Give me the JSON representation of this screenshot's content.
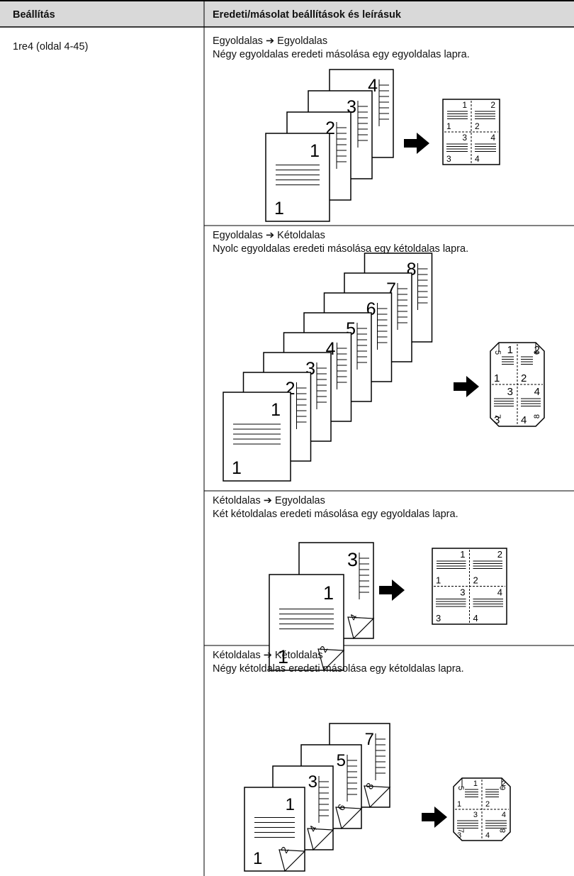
{
  "table": {
    "headers": [
      "Beállítás",
      "Eredeti/másolat beállítások és leírásuk"
    ],
    "setting": "1re4 (oldal 4-45)",
    "sections": [
      {
        "title": "Egyoldalas ➔ Egyoldalas",
        "description": "Négy egyoldalas eredeti másolása egy egyoldalas lapra.",
        "figure": {
          "originals": [
            "1",
            "2",
            "3",
            "4"
          ],
          "result": [
            "1",
            "2",
            "3",
            "4"
          ]
        }
      },
      {
        "title": "Egyoldalas ➔ Kétoldalas",
        "description": "Nyolc egyoldalas eredeti másolása egy kétoldalas lapra.",
        "figure": {
          "originals": [
            "1",
            "2",
            "3",
            "4",
            "5",
            "6",
            "7",
            "8"
          ],
          "result": [
            "1",
            "2",
            "3",
            "4"
          ],
          "result_back": [
            "5",
            "6",
            "7",
            "8"
          ]
        }
      },
      {
        "title": "Kétoldalas ➔ Egyoldalas",
        "description": "Két kétoldalas eredeti másolása egy egyoldalas lapra.",
        "figure": {
          "originals": [
            "1",
            "3"
          ],
          "originals_back": [
            "2",
            "4"
          ],
          "result": [
            "1",
            "2",
            "3",
            "4"
          ]
        }
      },
      {
        "title": "Kétoldalas ➔ Kétoldalas",
        "description": "Négy kétoldalas eredeti másolása egy kétoldalas lapra.",
        "figure": {
          "originals": [
            "1",
            "3",
            "5",
            "7"
          ],
          "originals_back": [
            "2",
            "4",
            "6",
            "8"
          ],
          "result": [
            "1",
            "2",
            "3",
            "4"
          ],
          "result_back": [
            "5",
            "6",
            "7",
            "8"
          ]
        }
      }
    ]
  }
}
